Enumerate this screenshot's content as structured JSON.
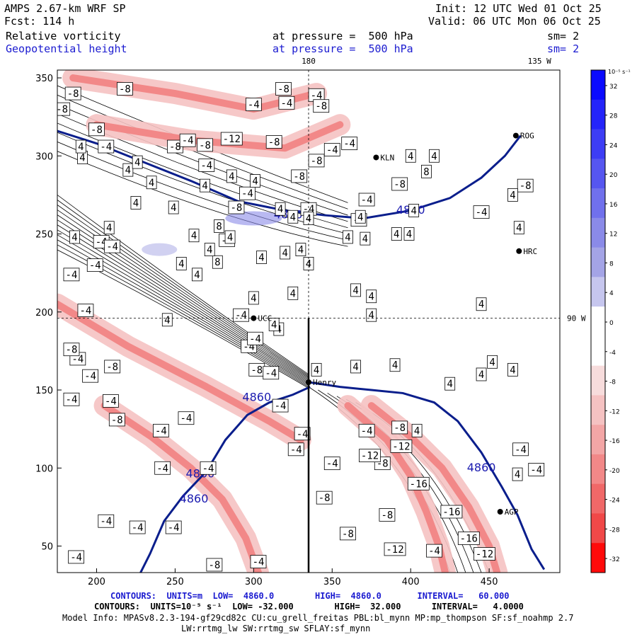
{
  "header": {
    "model": "AMPS 2.67-km WRF SP",
    "fcst": "Fcst: 114 h",
    "field1": "Relative vorticity",
    "field2": "Geopotential height",
    "pressure1": "at pressure =  500 hPa",
    "pressure2": "at pressure =  500 hPa",
    "init": "Init: 12 UTC Wed 01 Oct 25",
    "valid": "Valid: 06 UTC Mon 06 Oct 25",
    "sm1": "sm= 2",
    "sm2": "sm= 2"
  },
  "footer": {
    "line1": "CONTOURS:  UNITS=m  LOW=  4860.0        HIGH=  4860.0       INTERVAL=   60.000",
    "line2": "CONTOURS:  UNITS=10⁻⁵ s⁻¹  LOW= -32.000        HIGH=  32.000      INTERVAL=   4.0000",
    "line3": "Model Info: MPASv8.2.3-194-gf29cd82c CU:cu_grell_freitas PBL:bl_mynn MP:mp_thompson SF:sf_noahmp 2.7",
    "line4": "LW:rrtmg_lw SW:rrtmg_sw SFLAY:sf_mynn"
  },
  "chart_data": {
    "type": "heatmap",
    "xlim": [
      175,
      495
    ],
    "ylim": [
      33,
      355
    ],
    "x_ticks": [
      200,
      250,
      300,
      350,
      400,
      450
    ],
    "y_ticks": [
      50,
      100,
      150,
      200,
      250,
      300,
      350
    ],
    "top_labels": [
      {
        "text": "180",
        "x": 335
      },
      {
        "text": "135 W",
        "x": 482
      }
    ],
    "right_label": {
      "text": "90 W",
      "y": 196
    },
    "crosshair": {
      "x": 335,
      "y": 196
    },
    "colorbar": {
      "unit_label": "10⁻⁵ s⁻¹",
      "ticks": [
        32,
        28,
        24,
        20,
        16,
        12,
        8,
        4,
        0,
        -4,
        -8,
        -12,
        -16,
        -20,
        -24,
        -28,
        -32
      ],
      "colors": [
        "#0a0aff",
        "#2424fa",
        "#3d3df5",
        "#5656f0",
        "#7070ec",
        "#8a8ae8",
        "#a4a4e6",
        "#c6c6ee",
        "#ffffff",
        "#ffffff",
        "#f7dcdc",
        "#f5c2c2",
        "#f3a6a6",
        "#f28888",
        "#f06868",
        "#f04848",
        "#ff0a0a"
      ]
    },
    "stations": [
      {
        "name": "KLN",
        "x": 378,
        "y": 299
      },
      {
        "name": "ROG",
        "x": 467,
        "y": 313
      },
      {
        "name": "HRC",
        "x": 469,
        "y": 239
      },
      {
        "name": "UCC",
        "x": 300,
        "y": 196
      },
      {
        "name": "Henry",
        "x": 335,
        "y": 155
      },
      {
        "name": "AGP",
        "x": 457,
        "y": 72
      }
    ],
    "height_contour_label": "4860",
    "height_contours": [
      [
        [
          175,
          316
        ],
        [
          200,
          308
        ],
        [
          230,
          296
        ],
        [
          260,
          284
        ],
        [
          290,
          271
        ],
        [
          320,
          265
        ],
        [
          345,
          262
        ],
        [
          370,
          260
        ],
        [
          400,
          265
        ],
        [
          425,
          273
        ],
        [
          445,
          286
        ],
        [
          460,
          300
        ],
        [
          470,
          313
        ]
      ],
      [
        [
          335,
          155
        ],
        [
          355,
          152
        ],
        [
          375,
          150
        ],
        [
          395,
          148
        ],
        [
          415,
          142
        ],
        [
          430,
          130
        ],
        [
          445,
          110
        ],
        [
          458,
          88
        ],
        [
          468,
          70
        ],
        [
          477,
          48
        ],
        [
          485,
          35
        ]
      ],
      [
        [
          336,
          152
        ],
        [
          325,
          147
        ],
        [
          310,
          142
        ],
        [
          296,
          134
        ],
        [
          282,
          118
        ],
        [
          270,
          98
        ],
        [
          255,
          82
        ],
        [
          243,
          66
        ],
        [
          234,
          45
        ],
        [
          228,
          33
        ]
      ]
    ],
    "vorticity_labels": [
      {
        "v": -8,
        "x": 218,
        "y": 343
      },
      {
        "v": -8,
        "x": 185,
        "y": 340
      },
      {
        "v": -8,
        "x": 178,
        "y": 330
      },
      {
        "v": -8,
        "x": 200,
        "y": 317
      },
      {
        "v": -4,
        "x": 206,
        "y": 306
      },
      {
        "v": -8,
        "x": 250,
        "y": 306
      },
      {
        "v": -8,
        "x": 269,
        "y": 307
      },
      {
        "v": -4,
        "x": 258,
        "y": 310
      },
      {
        "v": -8,
        "x": 313,
        "y": 309
      },
      {
        "v": -12,
        "x": 286,
        "y": 311
      },
      {
        "v": -8,
        "x": 319,
        "y": 343
      },
      {
        "v": -4,
        "x": 300,
        "y": 333
      },
      {
        "v": -4,
        "x": 270,
        "y": 294
      },
      {
        "v": -8,
        "x": 340,
        "y": 297
      },
      {
        "v": -4,
        "x": 350,
        "y": 304
      },
      {
        "v": -8,
        "x": 329,
        "y": 287
      },
      {
        "v": -4,
        "x": 340,
        "y": 339
      },
      {
        "v": -4,
        "x": 321,
        "y": 334
      },
      {
        "v": -8,
        "x": 343,
        "y": 332
      },
      {
        "v": -4,
        "x": 361,
        "y": 308
      },
      {
        "v": -8,
        "x": 393,
        "y": 282
      },
      {
        "v": -4,
        "x": 372,
        "y": 272
      },
      {
        "v": -4,
        "x": 203,
        "y": 245
      },
      {
        "v": -4,
        "x": 283,
        "y": 246
      },
      {
        "v": -4,
        "x": 296,
        "y": 276
      },
      {
        "v": -4,
        "x": 335,
        "y": 266
      },
      {
        "v": -4,
        "x": 367,
        "y": 259
      },
      {
        "v": -8,
        "x": 289,
        "y": 267
      },
      {
        "v": -4,
        "x": 210,
        "y": 242
      },
      {
        "v": -4,
        "x": 184,
        "y": 224
      },
      {
        "v": -4,
        "x": 199,
        "y": 230
      },
      {
        "v": -4,
        "x": 193,
        "y": 201
      },
      {
        "v": -4,
        "x": 292,
        "y": 198
      },
      {
        "v": -4,
        "x": 297,
        "y": 178
      },
      {
        "v": -8,
        "x": 302,
        "y": 163
      },
      {
        "v": -4,
        "x": 301,
        "y": 183
      },
      {
        "v": -4,
        "x": 311,
        "y": 161
      },
      {
        "v": -4,
        "x": 188,
        "y": 170
      },
      {
        "v": -8,
        "x": 210,
        "y": 165
      },
      {
        "v": -8,
        "x": 184,
        "y": 176
      },
      {
        "v": -4,
        "x": 196,
        "y": 159
      },
      {
        "v": -4,
        "x": 184,
        "y": 144
      },
      {
        "v": -4,
        "x": 209,
        "y": 143
      },
      {
        "v": -8,
        "x": 213,
        "y": 131
      },
      {
        "v": -4,
        "x": 327,
        "y": 112
      },
      {
        "v": -4,
        "x": 350,
        "y": 103
      },
      {
        "v": -8,
        "x": 382,
        "y": 103
      },
      {
        "v": -12,
        "x": 374,
        "y": 108
      },
      {
        "v": -4,
        "x": 372,
        "y": 124
      },
      {
        "v": -8,
        "x": 393,
        "y": 126
      },
      {
        "v": -12,
        "x": 394,
        "y": 114
      },
      {
        "v": -16,
        "x": 405,
        "y": 90
      },
      {
        "v": -16,
        "x": 426,
        "y": 72
      },
      {
        "v": -8,
        "x": 345,
        "y": 81
      },
      {
        "v": -8,
        "x": 385,
        "y": 70
      },
      {
        "v": -8,
        "x": 360,
        "y": 58
      },
      {
        "v": -12,
        "x": 390,
        "y": 48
      },
      {
        "v": -16,
        "x": 437,
        "y": 55
      },
      {
        "v": -12,
        "x": 447,
        "y": 45
      },
      {
        "v": -4,
        "x": 415,
        "y": 47
      },
      {
        "v": -4,
        "x": 303,
        "y": 40
      },
      {
        "v": -8,
        "x": 275,
        "y": 38
      },
      {
        "v": -4,
        "x": 249,
        "y": 62
      },
      {
        "v": -4,
        "x": 226,
        "y": 62
      },
      {
        "v": -4,
        "x": 242,
        "y": 100
      },
      {
        "v": -4,
        "x": 241,
        "y": 124
      },
      {
        "v": -4,
        "x": 257,
        "y": 132
      },
      {
        "v": -4,
        "x": 271,
        "y": 100
      },
      {
        "v": -4,
        "x": 317,
        "y": 140
      },
      {
        "v": -4,
        "x": 331,
        "y": 122
      },
      {
        "v": -4,
        "x": 206,
        "y": 66
      },
      {
        "v": -4,
        "x": 187,
        "y": 43
      },
      {
        "v": -4,
        "x": 470,
        "y": 112
      },
      {
        "v": -4,
        "x": 480,
        "y": 99
      },
      {
        "v": -8,
        "x": 473,
        "y": 281
      },
      {
        "v": -4,
        "x": 445,
        "y": 264
      }
    ],
    "positive_labels": [
      {
        "v": 4,
        "x": 191,
        "y": 299
      },
      {
        "v": 4,
        "x": 190,
        "y": 306
      },
      {
        "v": 4,
        "x": 220,
        "y": 291
      },
      {
        "v": 4,
        "x": 226,
        "y": 296
      },
      {
        "v": 4,
        "x": 235,
        "y": 283
      },
      {
        "v": 4,
        "x": 225,
        "y": 270
      },
      {
        "v": 4,
        "x": 249,
        "y": 267
      },
      {
        "v": 4,
        "x": 269,
        "y": 281
      },
      {
        "v": 4,
        "x": 286,
        "y": 287
      },
      {
        "v": 4,
        "x": 301,
        "y": 284
      },
      {
        "v": 4,
        "x": 285,
        "y": 248
      },
      {
        "v": 4,
        "x": 317,
        "y": 266
      },
      {
        "v": 4,
        "x": 325,
        "y": 261
      },
      {
        "v": 4,
        "x": 320,
        "y": 238
      },
      {
        "v": 4,
        "x": 300,
        "y": 209
      },
      {
        "v": 4,
        "x": 325,
        "y": 212
      },
      {
        "v": 4,
        "x": 330,
        "y": 240
      },
      {
        "v": 4,
        "x": 264,
        "y": 224
      },
      {
        "v": 4,
        "x": 254,
        "y": 231
      },
      {
        "v": 4,
        "x": 245,
        "y": 195
      },
      {
        "v": 4,
        "x": 186,
        "y": 248
      },
      {
        "v": 4,
        "x": 208,
        "y": 254
      },
      {
        "v": 8,
        "x": 277,
        "y": 232
      },
      {
        "v": 8,
        "x": 278,
        "y": 255
      },
      {
        "v": 4,
        "x": 335,
        "y": 260
      },
      {
        "v": 4,
        "x": 335,
        "y": 231
      },
      {
        "v": 4,
        "x": 262,
        "y": 249
      },
      {
        "v": 4,
        "x": 272,
        "y": 240
      },
      {
        "v": 4,
        "x": 368,
        "y": 261
      },
      {
        "v": 4,
        "x": 371,
        "y": 247
      },
      {
        "v": 4,
        "x": 399,
        "y": 250
      },
      {
        "v": 4,
        "x": 391,
        "y": 250
      },
      {
        "v": 4,
        "x": 360,
        "y": 248
      },
      {
        "v": 4,
        "x": 375,
        "y": 210
      },
      {
        "v": 4,
        "x": 365,
        "y": 214
      },
      {
        "v": 4,
        "x": 375,
        "y": 198
      },
      {
        "v": 4,
        "x": 305,
        "y": 235
      },
      {
        "v": 4,
        "x": 316,
        "y": 189
      },
      {
        "v": 4,
        "x": 313,
        "y": 192
      },
      {
        "v": 4,
        "x": 340,
        "y": 163
      },
      {
        "v": 4,
        "x": 365,
        "y": 165
      },
      {
        "v": 4,
        "x": 390,
        "y": 166
      },
      {
        "v": 4,
        "x": 425,
        "y": 154
      },
      {
        "v": 4,
        "x": 445,
        "y": 160
      },
      {
        "v": 4,
        "x": 452,
        "y": 168
      },
      {
        "v": 4,
        "x": 465,
        "y": 163
      },
      {
        "v": 4,
        "x": 469,
        "y": 254
      },
      {
        "v": 4,
        "x": 465,
        "y": 275
      },
      {
        "v": 4,
        "x": 402,
        "y": 265
      },
      {
        "v": 8,
        "x": 410,
        "y": 290
      },
      {
        "v": 4,
        "x": 400,
        "y": 300
      },
      {
        "v": 4,
        "x": 415,
        "y": 300
      },
      {
        "v": 4,
        "x": 468,
        "y": 96
      },
      {
        "v": 4,
        "x": 404,
        "y": 124
      },
      {
        "v": 4,
        "x": 445,
        "y": 205
      }
    ]
  }
}
